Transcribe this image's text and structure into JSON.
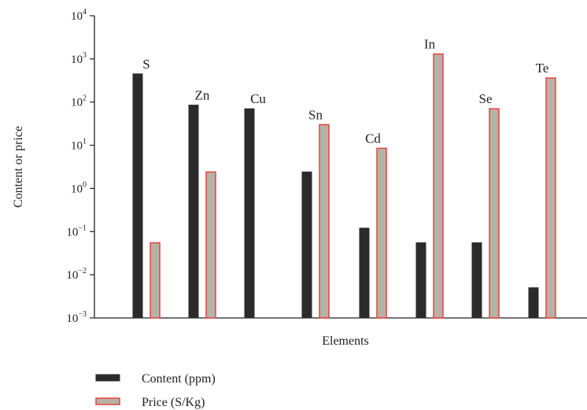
{
  "chart_data": {
    "type": "bar",
    "yscale": "log",
    "ylim": [
      0.001,
      10000
    ],
    "yticks": [
      {
        "base": "10",
        "exp": "−3"
      },
      {
        "base": "10",
        "exp": "−2"
      },
      {
        "base": "10",
        "exp": "−1"
      },
      {
        "base": "10",
        "exp": "0"
      },
      {
        "base": "10",
        "exp": "1"
      },
      {
        "base": "10",
        "exp": "2"
      },
      {
        "base": "10",
        "exp": "3"
      },
      {
        "base": "10",
        "exp": "4"
      }
    ],
    "categories": [
      "S",
      "Zn",
      "Cu",
      "Sn",
      "Cd",
      "In",
      "Se",
      "Te"
    ],
    "series": [
      {
        "name": "Content (ppm)",
        "values": [
          450,
          85,
          70,
          2.4,
          0.12,
          0.055,
          0.055,
          0.005
        ],
        "fill": "#2b2b2b",
        "stroke": "#2b2b2b"
      },
      {
        "name": "Price (S/Kg)",
        "values": [
          0.055,
          2.4,
          null,
          30,
          8.5,
          1300,
          70,
          360
        ],
        "fill": "#b7b2a7",
        "stroke": "#e8423f"
      }
    ],
    "xlabel": "Elements",
    "ylabel": "Content or price",
    "legend_position": "bottom-left",
    "grid": false
  }
}
